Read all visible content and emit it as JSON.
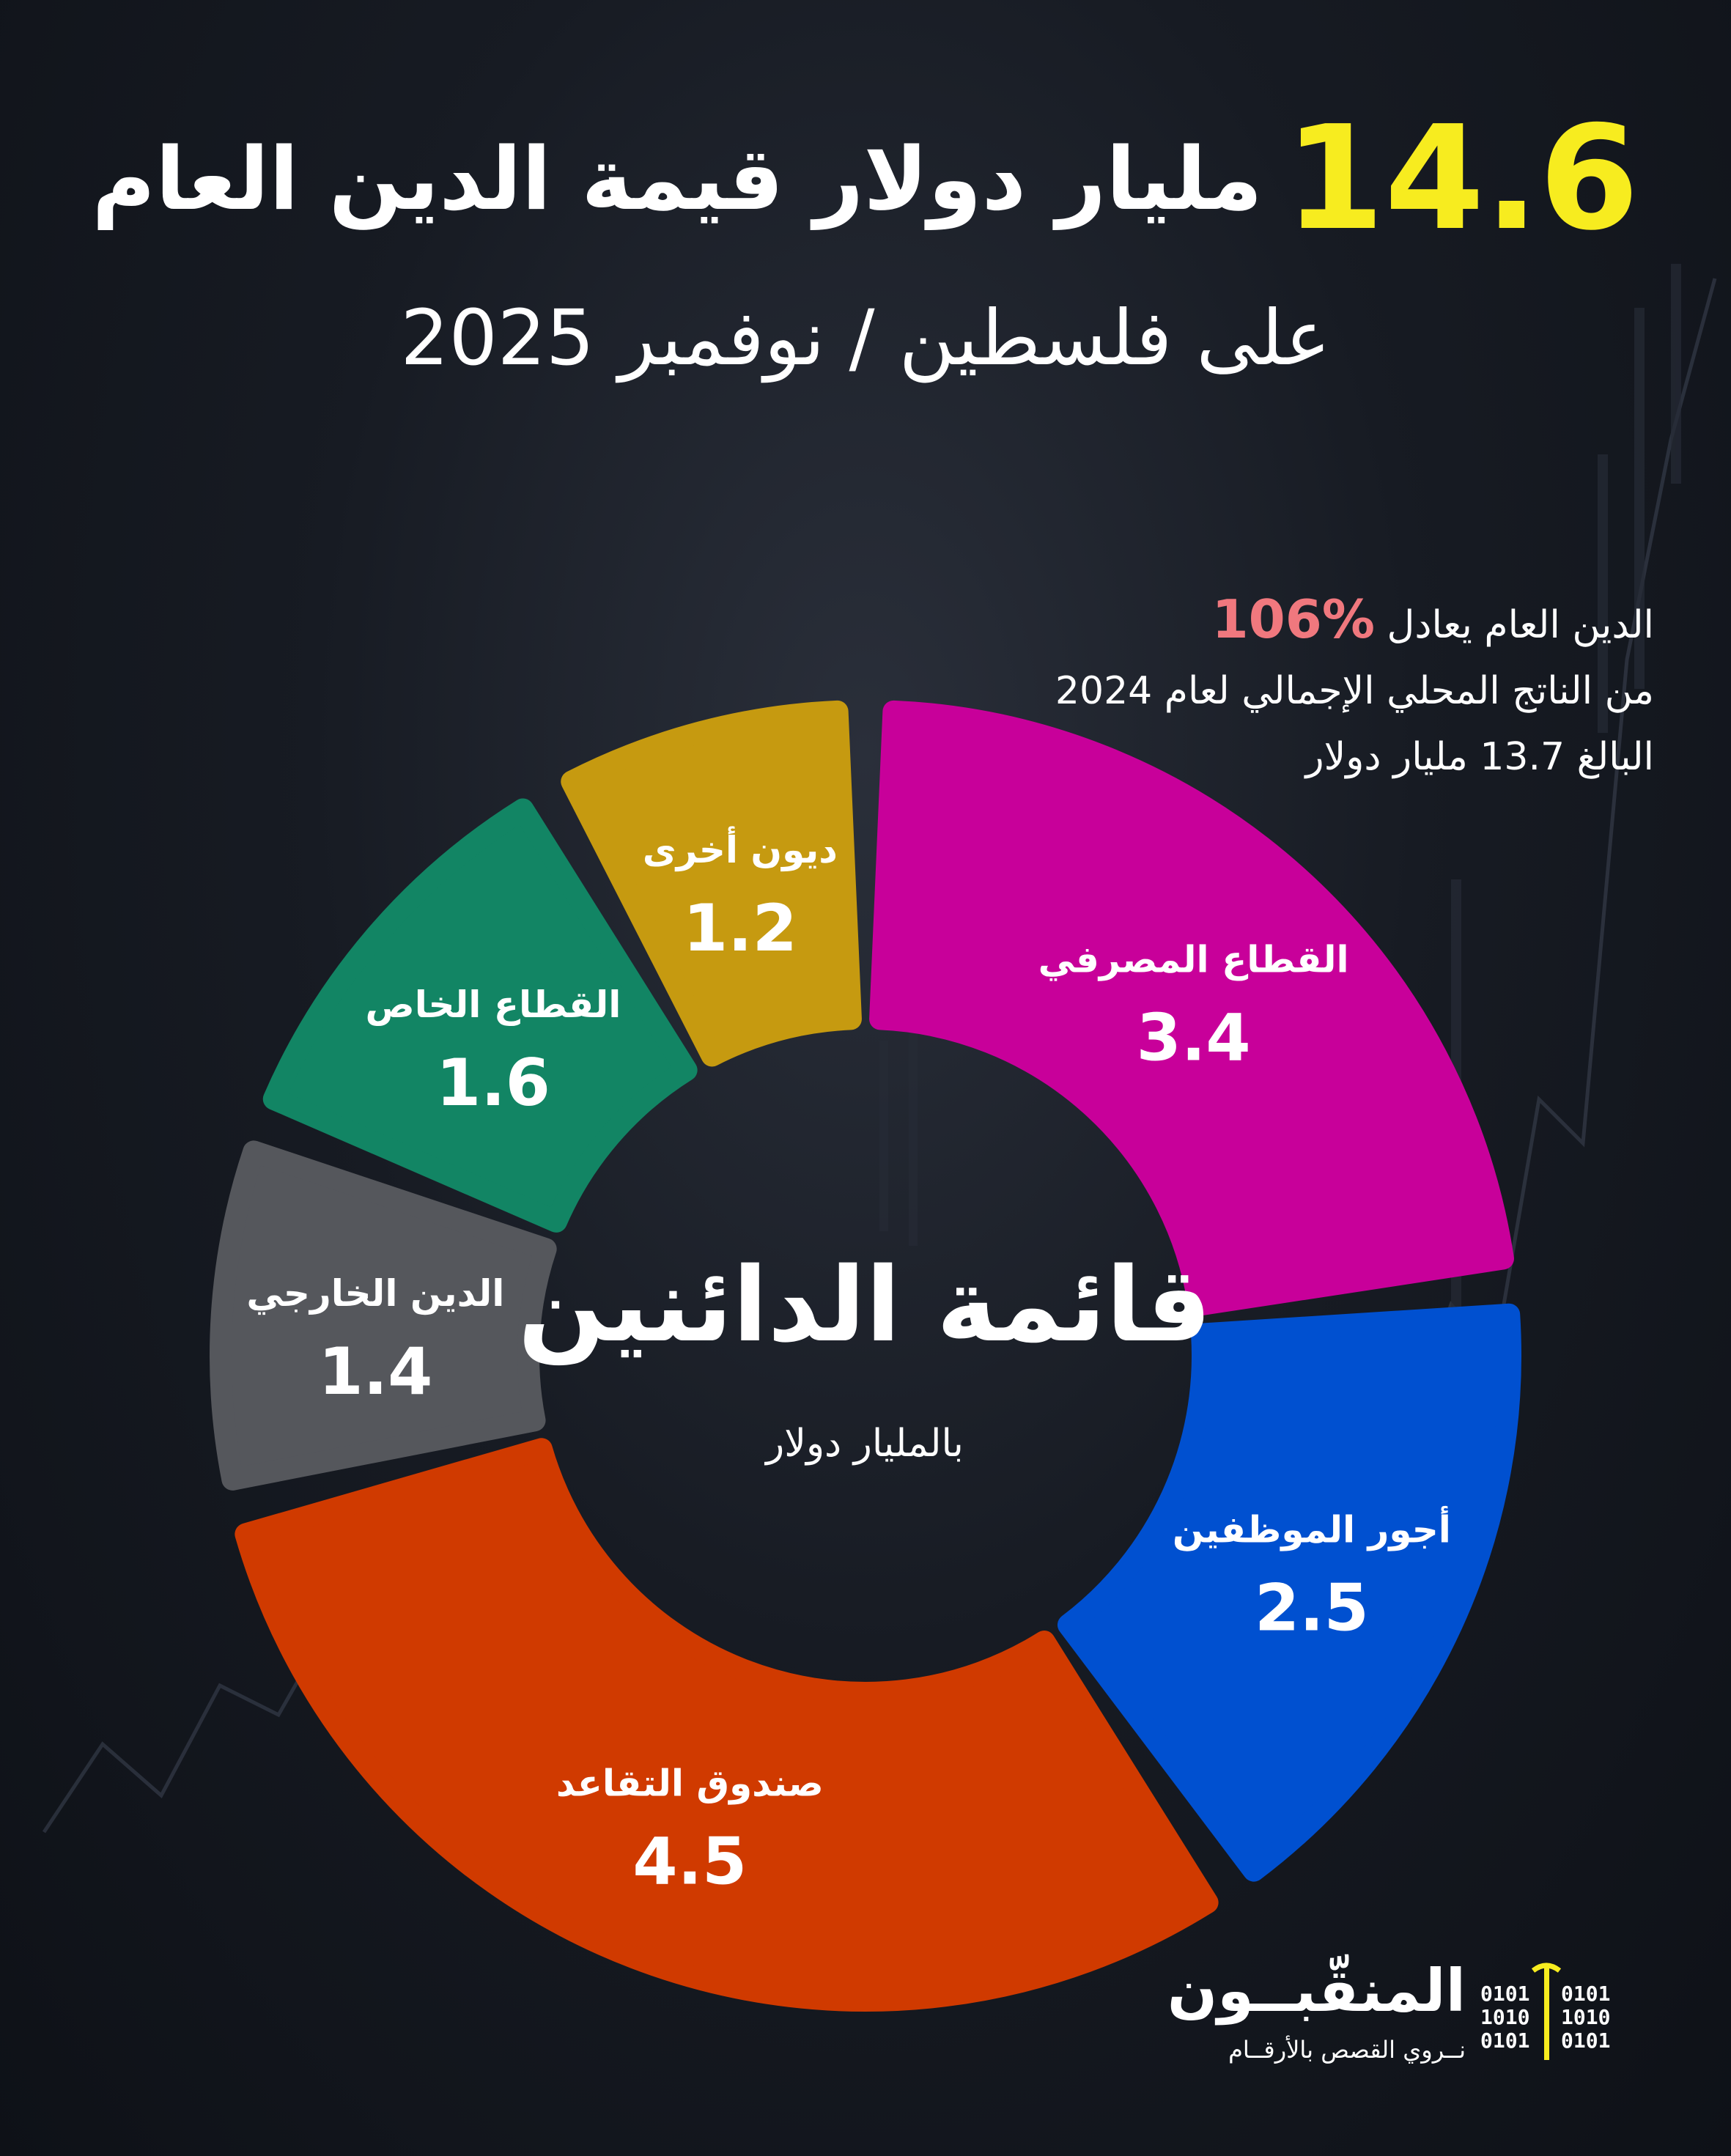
{
  "header": {
    "title_number": "14.6",
    "title_text": "مليار دولار قيمة الدين العام",
    "subtitle": "على فلسطين / نوفمبر 2025"
  },
  "info": {
    "line1_prefix": "الدين العام يعادل",
    "line1_highlight": "106%",
    "line2": "من الناتج المحلي الإجمالي لعام 2024",
    "line3": "البالغ 13.7 مليار دولار"
  },
  "center": {
    "title": "قائمة الدائنين",
    "unit": "بالمليار دولار"
  },
  "brand": {
    "name": "المنقّبــون",
    "tagline": "نــروي القصص بالأرقــام",
    "binary_left": [
      "0101",
      "1010",
      "0101"
    ],
    "binary_right": [
      "0101",
      "1010",
      "0101"
    ]
  },
  "chart_data": {
    "type": "pie",
    "title": "قائمة الدائنين",
    "unit": "بالمليار دولار",
    "categories": [
      "القطاع المصرفي",
      "أجور الموظفين",
      "صندوق التقاعد",
      "الدين الخارجي",
      "القطاع الخاص",
      "ديون أخرى"
    ],
    "values": [
      3.4,
      2.5,
      4.5,
      1.4,
      1.6,
      1.2
    ],
    "value_labels": [
      "3.4",
      "2.5",
      "4.5",
      "1.4",
      "1.6",
      "1.2"
    ],
    "colors": [
      "#c8009a",
      "#0050d0",
      "#d03a00",
      "#55575c",
      "#128564",
      "#c69a10"
    ],
    "legend": "none",
    "order": "clockwise from top"
  }
}
